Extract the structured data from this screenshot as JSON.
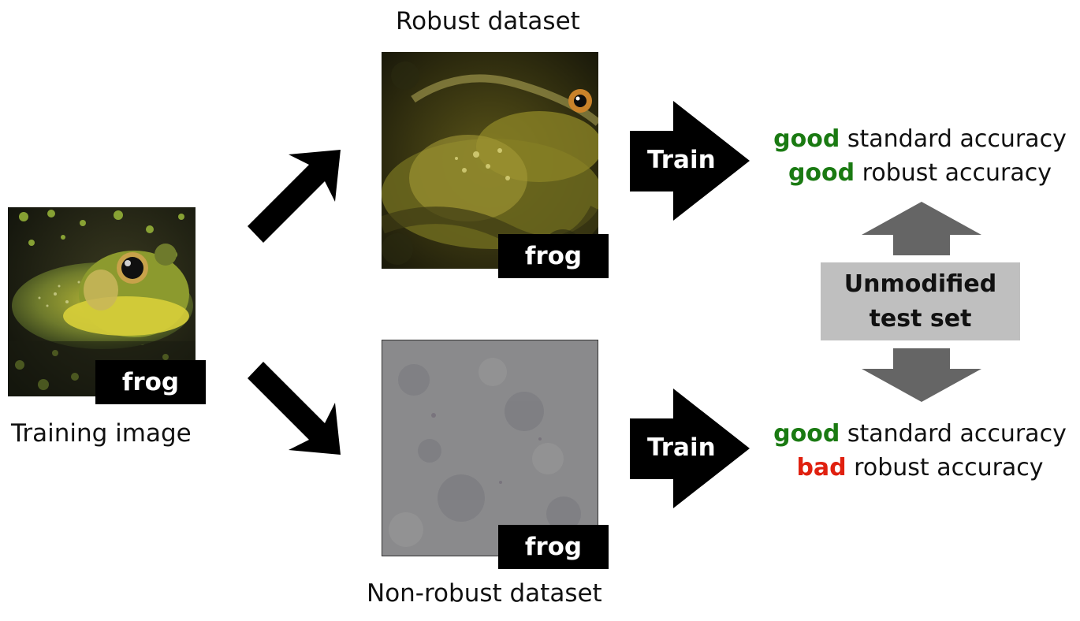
{
  "captions": {
    "robust_title": "Robust dataset",
    "nonrobust_title": "Non-robust dataset",
    "training_image": "Training image"
  },
  "tags": {
    "training": "frog",
    "robust": "frog",
    "nonrobust": "frog"
  },
  "train_arrows": {
    "top": "Train",
    "bottom": "Train"
  },
  "results": {
    "top": {
      "line1": {
        "quality": "good",
        "metric": " standard accuracy",
        "quality_color": "#1a7a12"
      },
      "line2": {
        "quality": "good",
        "metric": " robust accuracy",
        "quality_color": "#1a7a12"
      }
    },
    "bottom": {
      "line1": {
        "quality": "good",
        "metric": " standard accuracy",
        "quality_color": "#1a7a12"
      },
      "line2": {
        "quality": "bad",
        "metric": " robust accuracy",
        "quality_color": "#e0200f"
      }
    }
  },
  "test_set": {
    "line1": "Unmodified",
    "line2": "test set"
  },
  "colors": {
    "good": "#1a7a12",
    "bad": "#e0200f",
    "test_box": "#bfbfbf",
    "gray_arrow": "#656565"
  }
}
